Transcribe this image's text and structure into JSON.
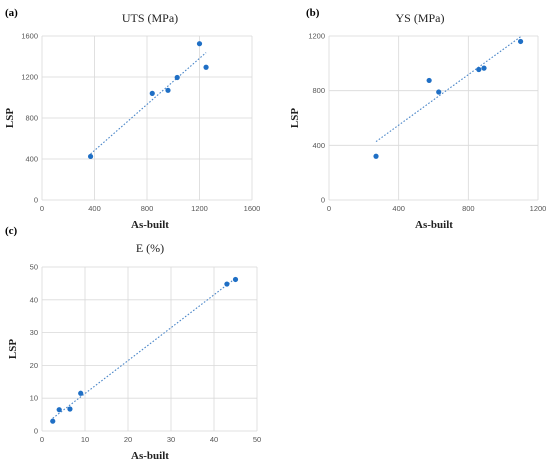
{
  "chart_data": [
    {
      "id": "a",
      "type": "scatter",
      "panel_label": "(a)",
      "title": "UTS (MPa)",
      "xlabel": "As-built",
      "ylabel": "LSP",
      "xlim": [
        0,
        1600
      ],
      "ylim": [
        0,
        1600
      ],
      "xticks": [
        0,
        400,
        800,
        1200,
        1600
      ],
      "yticks": [
        0,
        400,
        800,
        1200,
        1600
      ],
      "grid": true,
      "trendline": "linear",
      "color": "#1f6fc5",
      "points": [
        {
          "x": 370,
          "y": 425
        },
        {
          "x": 840,
          "y": 1040
        },
        {
          "x": 960,
          "y": 1070
        },
        {
          "x": 1030,
          "y": 1195
        },
        {
          "x": 1200,
          "y": 1525
        },
        {
          "x": 1250,
          "y": 1295
        }
      ]
    },
    {
      "id": "b",
      "type": "scatter",
      "panel_label": "(b)",
      "title": "YS (MPa)",
      "xlabel": "As-built",
      "ylabel": "LSP",
      "xlim": [
        0,
        1200
      ],
      "ylim": [
        0,
        1200
      ],
      "xticks": [
        0,
        400,
        800,
        1200
      ],
      "yticks": [
        0,
        400,
        800,
        1200
      ],
      "grid": true,
      "trendline": "linear",
      "color": "#1f6fc5",
      "points": [
        {
          "x": 270,
          "y": 320
        },
        {
          "x": 575,
          "y": 875
        },
        {
          "x": 630,
          "y": 790
        },
        {
          "x": 860,
          "y": 955
        },
        {
          "x": 890,
          "y": 965
        },
        {
          "x": 1100,
          "y": 1160
        }
      ]
    },
    {
      "id": "c",
      "type": "scatter",
      "panel_label": "(c)",
      "title": "E (%)",
      "xlabel": "As-built",
      "ylabel": "LSP",
      "xlim": [
        0,
        50
      ],
      "ylim": [
        0,
        50
      ],
      "xticks": [
        0,
        10,
        20,
        30,
        40,
        50
      ],
      "yticks": [
        0,
        10,
        20,
        30,
        40,
        50
      ],
      "grid": true,
      "trendline": "linear",
      "color": "#1f6fc5",
      "points": [
        {
          "x": 2.5,
          "y": 3
        },
        {
          "x": 4,
          "y": 6.5
        },
        {
          "x": 6.5,
          "y": 6.7
        },
        {
          "x": 9,
          "y": 11.5
        },
        {
          "x": 43,
          "y": 44.8
        },
        {
          "x": 45,
          "y": 46.2
        }
      ]
    }
  ]
}
